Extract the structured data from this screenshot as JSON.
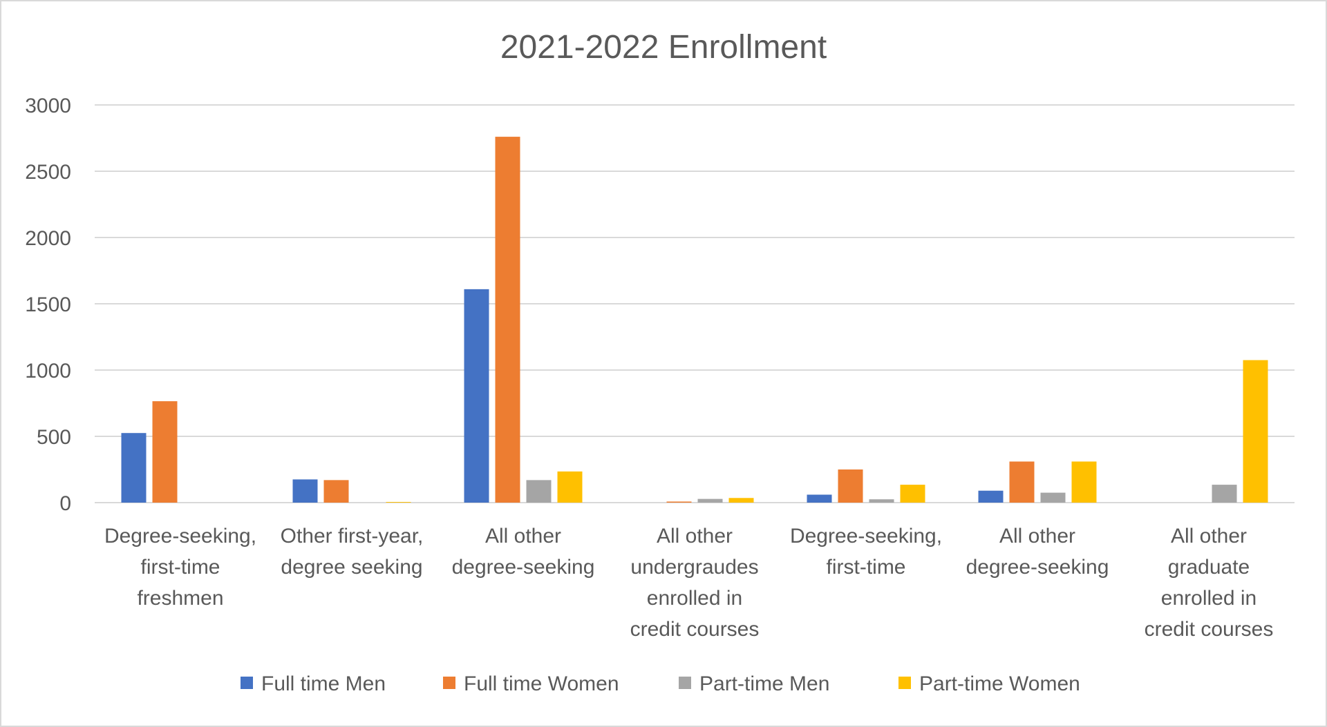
{
  "chart_data": {
    "type": "bar",
    "title": "2021-2022 Enrollment",
    "xlabel": "",
    "ylabel": "",
    "ylim": [
      0,
      3000
    ],
    "yticks": [
      0,
      500,
      1000,
      1500,
      2000,
      2500,
      3000
    ],
    "grid": true,
    "legend_position": "bottom",
    "categories": [
      [
        "Degree-seeking,",
        "first-time",
        "freshmen"
      ],
      [
        "Other first-year,",
        "degree seeking"
      ],
      [
        "All other",
        "degree-seeking"
      ],
      [
        "All other",
        "undergraudes",
        "enrolled in",
        "credit courses"
      ],
      [
        "Degree-seeking,",
        "first-time"
      ],
      [
        "All other",
        "degree-seeking"
      ],
      [
        "All other",
        "graduate",
        "enrolled in",
        "credit courses"
      ]
    ],
    "series": [
      {
        "name": "Full time Men",
        "color": "#4472C4",
        "values": [
          525,
          175,
          1610,
          0,
          60,
          90,
          0
        ]
      },
      {
        "name": "Full time Women",
        "color": "#ED7D31",
        "values": [
          765,
          170,
          2760,
          8,
          250,
          310,
          0
        ]
      },
      {
        "name": "Part-time Men",
        "color": "#A5A5A5",
        "values": [
          0,
          0,
          170,
          28,
          25,
          75,
          135
        ]
      },
      {
        "name": "Part-time Women",
        "color": "#FFC000",
        "values": [
          0,
          5,
          235,
          35,
          135,
          310,
          1075
        ]
      }
    ]
  }
}
